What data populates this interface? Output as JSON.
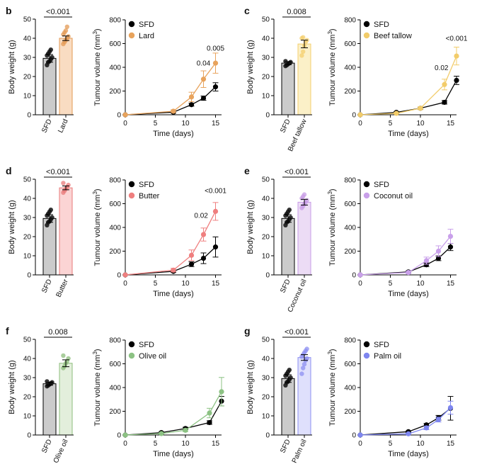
{
  "chart_data": [
    {
      "panel": "b",
      "bar_chart": {
        "type": "bar",
        "ylabel": "Body weight (g)",
        "ylim": [
          0,
          50
        ],
        "yticks": [
          0,
          10,
          20,
          30,
          40,
          50
        ],
        "categories": [
          "SFD",
          "Lard"
        ],
        "values": [
          29.5,
          40.0
        ],
        "errors": [
          2.0,
          1.2
        ],
        "points": [
          [
            26,
            27.5,
            28,
            29,
            30,
            31,
            32,
            33,
            34
          ],
          [
            37,
            38,
            39,
            40,
            41,
            42,
            43,
            44,
            46
          ]
        ],
        "bar_colors": [
          "#cbcbcb",
          "#f9dcc2"
        ],
        "edge_colors": [
          "#000000",
          "#e39a54"
        ],
        "p_value": "<0.001"
      },
      "line_chart": {
        "type": "line",
        "xlabel": "Time (days)",
        "ylabel_prefix": "Tumour volume (mm",
        "ylabel_superscript": "3",
        "ylabel_suffix": ")",
        "xlim": [
          0,
          16
        ],
        "xticks": [
          0,
          5,
          10,
          15
        ],
        "ylim": [
          0,
          800
        ],
        "yticks": [
          0,
          200,
          400,
          600,
          800
        ],
        "series": [
          {
            "name": "SFD",
            "color": "#000000",
            "x": [
              0,
              8,
              11,
              13,
              15
            ],
            "y": [
              0,
              22,
              85,
              140,
              235
            ],
            "err": [
              3,
              8,
              12,
              18,
              35
            ]
          },
          {
            "name": "Lard",
            "color": "#e8a35c",
            "x": [
              0,
              8,
              11,
              13,
              15
            ],
            "y": [
              0,
              30,
              150,
              300,
              435
            ],
            "err": [
              3,
              12,
              40,
              70,
              85
            ]
          }
        ],
        "annotations": [
          {
            "text": "0.04",
            "x": 13,
            "y": 415
          },
          {
            "text": "0.005",
            "x": 15,
            "y": 540
          }
        ]
      }
    },
    {
      "panel": "c",
      "bar_chart": {
        "type": "bar",
        "ylabel": "Body weight (g)",
        "ylim": [
          0,
          50
        ],
        "yticks": [
          0,
          10,
          20,
          30,
          40,
          50
        ],
        "categories": [
          "SFD",
          "Beef tallow"
        ],
        "values": [
          27.0,
          37.0
        ],
        "errors": [
          0.8,
          2.0
        ],
        "points": [
          [
            25.5,
            26,
            26.5,
            27,
            27.5,
            28
          ],
          [
            31,
            33,
            36,
            38,
            39,
            40,
            40.5
          ]
        ],
        "bar_colors": [
          "#cbcbcb",
          "#fbf0c8"
        ],
        "edge_colors": [
          "#000000",
          "#f4cf6e"
        ],
        "p_value": "0.008"
      },
      "line_chart": {
        "type": "line",
        "xlabel": "Time (days)",
        "ylabel_prefix": "Tumour volume (mm",
        "ylabel_superscript": "3",
        "ylabel_suffix": ")",
        "xlim": [
          0,
          16
        ],
        "xticks": [
          0,
          5,
          10,
          15
        ],
        "ylim": [
          0,
          800
        ],
        "yticks": [
          0,
          200,
          400,
          600,
          800
        ],
        "series": [
          {
            "name": "SFD",
            "color": "#000000",
            "x": [
              0,
              6,
              10,
              14,
              16
            ],
            "y": [
              0,
              20,
              55,
              105,
              290
            ],
            "err": [
              3,
              6,
              10,
              15,
              35
            ]
          },
          {
            "name": "Beef tallow",
            "color": "#f2cc6a",
            "x": [
              0,
              6,
              10,
              14,
              16
            ],
            "y": [
              0,
              12,
              55,
              255,
              495
            ],
            "err": [
              3,
              6,
              12,
              45,
              75
            ]
          }
        ],
        "annotations": [
          {
            "text": "0.02",
            "x": 13.5,
            "y": 375
          },
          {
            "text": "<0.001",
            "x": 16,
            "y": 625
          }
        ]
      }
    },
    {
      "panel": "d",
      "bar_chart": {
        "type": "bar",
        "ylabel": "Body weight (g)",
        "ylim": [
          0,
          50
        ],
        "yticks": [
          0,
          10,
          20,
          30,
          40,
          50
        ],
        "categories": [
          "SFD",
          "Butter"
        ],
        "values": [
          29.5,
          45.5
        ],
        "errors": [
          2.0,
          1.0
        ],
        "points": [
          [
            26,
            27.5,
            28,
            29,
            30,
            31,
            32,
            33,
            34
          ],
          [
            43,
            44,
            45,
            46,
            47,
            48
          ]
        ],
        "bar_colors": [
          "#cbcbcb",
          "#fbd4d4"
        ],
        "edge_colors": [
          "#000000",
          "#e87a7a"
        ],
        "p_value": "<0.001"
      },
      "line_chart": {
        "type": "line",
        "xlabel": "Time (days)",
        "ylabel_prefix": "Tumour volume (mm",
        "ylabel_superscript": "3",
        "ylabel_suffix": ")",
        "xlim": [
          0,
          16
        ],
        "xticks": [
          0,
          5,
          10,
          15
        ],
        "ylim": [
          0,
          800
        ],
        "yticks": [
          0,
          200,
          400,
          600,
          800
        ],
        "series": [
          {
            "name": "SFD",
            "color": "#000000",
            "x": [
              0,
              8,
              11,
              13,
              15
            ],
            "y": [
              0,
              30,
              90,
              140,
              235
            ],
            "err": [
              3,
              10,
              20,
              45,
              85
            ]
          },
          {
            "name": "Butter",
            "color": "#ef7f7f",
            "x": [
              0,
              8,
              11,
              13,
              15
            ],
            "y": [
              0,
              40,
              165,
              340,
              535
            ],
            "err": [
              3,
              15,
              45,
              55,
              75
            ]
          }
        ],
        "annotations": [
          {
            "text": "0.02",
            "x": 12.6,
            "y": 480
          },
          {
            "text": "<0.001",
            "x": 15,
            "y": 690
          }
        ]
      }
    },
    {
      "panel": "e",
      "bar_chart": {
        "type": "bar",
        "ylabel": "Body weight (g)",
        "ylim": [
          0,
          50
        ],
        "yticks": [
          0,
          10,
          20,
          30,
          40,
          50
        ],
        "categories": [
          "SFD",
          "Coconut oil"
        ],
        "values": [
          29.5,
          38.0
        ],
        "errors": [
          2.0,
          1.5
        ],
        "points": [
          [
            26,
            27.5,
            28,
            29,
            30,
            31,
            32,
            33,
            34
          ],
          [
            35,
            36,
            37,
            38,
            39,
            40,
            41,
            42
          ]
        ],
        "bar_colors": [
          "#cbcbcb",
          "#ecdcf5"
        ],
        "edge_colors": [
          "#000000",
          "#c79be6"
        ],
        "p_value": "<0.001"
      },
      "line_chart": {
        "type": "line",
        "xlabel": "Time (days)",
        "ylabel_prefix": "Tumour volume (mm",
        "ylabel_superscript": "3",
        "ylabel_suffix": ")",
        "xlim": [
          0,
          16
        ],
        "xticks": [
          0,
          5,
          10,
          15
        ],
        "ylim": [
          0,
          800
        ],
        "yticks": [
          0,
          200,
          400,
          600,
          800
        ],
        "series": [
          {
            "name": "SFD",
            "color": "#000000",
            "x": [
              0,
              8,
              11,
              13,
              15
            ],
            "y": [
              0,
              25,
              85,
              140,
              235
            ],
            "err": [
              3,
              8,
              15,
              20,
              30
            ]
          },
          {
            "name": "Coconut oil",
            "color": "#c9a0ea",
            "x": [
              0,
              8,
              11,
              13,
              15
            ],
            "y": [
              0,
              20,
              120,
              200,
              325
            ],
            "err": [
              3,
              8,
              30,
              45,
              60
            ]
          }
        ],
        "annotations": []
      }
    },
    {
      "panel": "f",
      "bar_chart": {
        "type": "bar",
        "ylabel": "Body weight (g)",
        "ylim": [
          0,
          50
        ],
        "yticks": [
          0,
          10,
          20,
          30,
          40,
          50
        ],
        "categories": [
          "SFD",
          "Olive oil"
        ],
        "values": [
          26.8,
          37.5
        ],
        "errors": [
          0.8,
          1.8
        ],
        "points": [
          [
            25.5,
            26,
            26.5,
            27,
            27.5,
            28
          ],
          [
            35,
            36,
            37.5,
            38.5,
            40,
            41.5
          ]
        ],
        "bar_colors": [
          "#cbcbcb",
          "#e3efdc"
        ],
        "edge_colors": [
          "#000000",
          "#8dbd7c"
        ],
        "p_value": "0.008"
      },
      "line_chart": {
        "type": "line",
        "xlabel": "Time (days)",
        "ylabel_prefix": "Tumour volume (mm",
        "ylabel_superscript": "3",
        "ylabel_suffix": ")",
        "xlim": [
          0,
          16
        ],
        "xticks": [
          0,
          5,
          10,
          15
        ],
        "ylim": [
          0,
          800
        ],
        "yticks": [
          0,
          200,
          400,
          600,
          800
        ],
        "series": [
          {
            "name": "SFD",
            "color": "#000000",
            "x": [
              0,
              6,
              10,
              14,
              16
            ],
            "y": [
              0,
              20,
              55,
              105,
              285
            ],
            "err": [
              3,
              6,
              10,
              15,
              40
            ]
          },
          {
            "name": "Olive oil",
            "color": "#8cc283",
            "x": [
              0,
              6,
              10,
              14,
              16
            ],
            "y": [
              0,
              12,
              40,
              185,
              365
            ],
            "err": [
              3,
              6,
              12,
              40,
              120
            ]
          }
        ],
        "annotations": []
      }
    },
    {
      "panel": "g",
      "bar_chart": {
        "type": "bar",
        "ylabel": "Body weight (g)",
        "ylim": [
          0,
          50
        ],
        "yticks": [
          0,
          10,
          20,
          30,
          40,
          50
        ],
        "categories": [
          "SFD",
          "Palm oil"
        ],
        "values": [
          29.5,
          40.5
        ],
        "errors": [
          2.0,
          1.5
        ],
        "points": [
          [
            26,
            27.5,
            28,
            29,
            30,
            31,
            32,
            33,
            34
          ],
          [
            32,
            35,
            37,
            39,
            40,
            41,
            42,
            43,
            44,
            45
          ]
        ],
        "bar_colors": [
          "#cbcbcb",
          "#dfe0fc"
        ],
        "edge_colors": [
          "#000000",
          "#8c8ff2"
        ],
        "p_value": "<0.001"
      },
      "line_chart": {
        "type": "line",
        "xlabel": "Time (days)",
        "ylabel_prefix": "Tumour volume (mm",
        "ylabel_superscript": "3",
        "ylabel_suffix": ")",
        "xlim": [
          0,
          16
        ],
        "xticks": [
          0,
          5,
          10,
          15
        ],
        "ylim": [
          0,
          800
        ],
        "yticks": [
          0,
          200,
          400,
          600,
          800
        ],
        "series": [
          {
            "name": "SFD",
            "color": "#000000",
            "x": [
              0,
              8,
              11,
              13,
              15
            ],
            "y": [
              0,
              28,
              85,
              145,
              225
            ],
            "err": [
              3,
              6,
              12,
              20,
              100
            ]
          },
          {
            "name": "Palm oil",
            "color": "#7e86f0",
            "x": [
              0,
              8,
              11,
              13,
              15
            ],
            "y": [
              0,
              10,
              60,
              130,
              230
            ],
            "err": [
              3,
              5,
              15,
              20,
              55
            ]
          }
        ],
        "annotations": []
      }
    }
  ]
}
